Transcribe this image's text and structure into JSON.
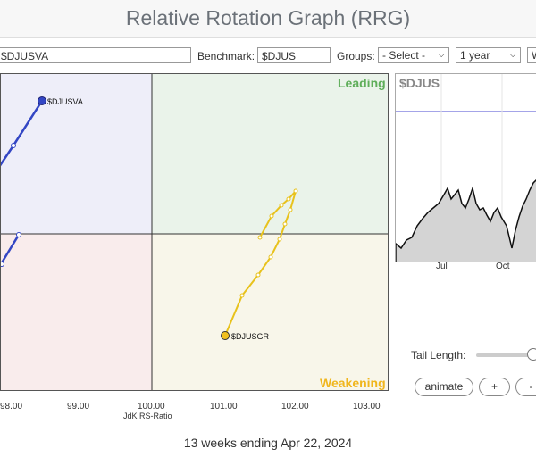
{
  "header": {
    "title": "Relative Rotation Graph (RRG)"
  },
  "toolbar": {
    "symbol_value": "$DJUSVA",
    "benchmark_label": "Benchmark:",
    "benchmark_value": "$DJUS",
    "groups_label": "Groups:",
    "groups_value": "- Select -",
    "period_value": "1 year",
    "extra_value": "W"
  },
  "rrg": {
    "quadrants": {
      "leading": "Leading",
      "weakening": "Weakening"
    },
    "colors": {
      "leading": "#5fae5a",
      "weakening": "#f0b61e",
      "blue_series": "#3346c4",
      "yellow_series": "#e8c21c"
    },
    "x_ticks": [
      "98.00",
      "99.00",
      "100.00",
      "101.00",
      "102.00",
      "103.00"
    ],
    "x_axis_label": "JdK RS-Ratio",
    "series": [
      {
        "name": "$DJUSVA",
        "color": "#3346c4"
      },
      {
        "name": "$DJUSGR",
        "color": "#e8c21c"
      }
    ]
  },
  "mini_chart": {
    "title": "$DJUS",
    "months": [
      "Jul",
      "Oct"
    ]
  },
  "controls": {
    "tail_length_label": "Tail Length:",
    "animate_label": "animate",
    "plus_label": "+",
    "minus_label": "-"
  },
  "footer": {
    "text": "13 weeks ending Apr 22, 2024"
  }
}
